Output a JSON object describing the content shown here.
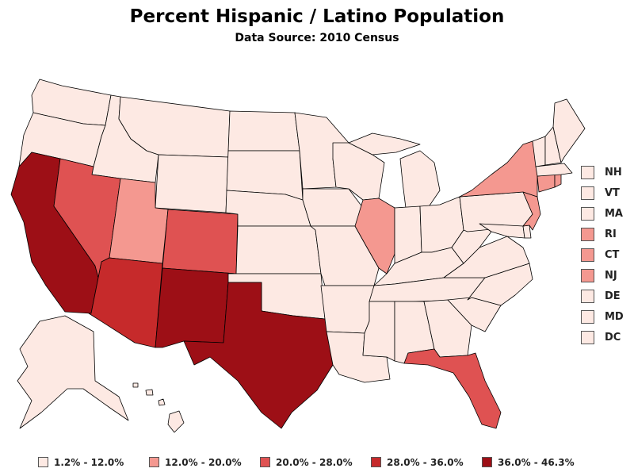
{
  "title": "Percent Hispanic / Latino Population",
  "subtitle": "Data Source: 2010 Census",
  "colors": {
    "bin1": "#fde9e3",
    "bin2": "#f49890",
    "bin3": "#df5252",
    "bin4": "#c62a2b",
    "bin5": "#9d0f16",
    "outline": "#000000"
  },
  "legend": [
    {
      "label": "1.2% - 12.0%",
      "color": "#fde9e3"
    },
    {
      "label": "12.0% - 20.0%",
      "color": "#f49890"
    },
    {
      "label": "20.0% - 28.0%",
      "color": "#df5252"
    },
    {
      "label": "28.0% - 36.0%",
      "color": "#c62a2b"
    },
    {
      "label": "36.0% - 46.3%",
      "color": "#9d0f16"
    }
  ],
  "small_states": [
    {
      "abbr": "NH",
      "color": "#fde9e3"
    },
    {
      "abbr": "VT",
      "color": "#fde9e3"
    },
    {
      "abbr": "MA",
      "color": "#fde9e3"
    },
    {
      "abbr": "RI",
      "color": "#f49890"
    },
    {
      "abbr": "CT",
      "color": "#f49890"
    },
    {
      "abbr": "NJ",
      "color": "#f49890"
    },
    {
      "abbr": "DE",
      "color": "#fde9e3"
    },
    {
      "abbr": "MD",
      "color": "#fde9e3"
    },
    {
      "abbr": "DC",
      "color": "#fde9e3"
    }
  ]
}
